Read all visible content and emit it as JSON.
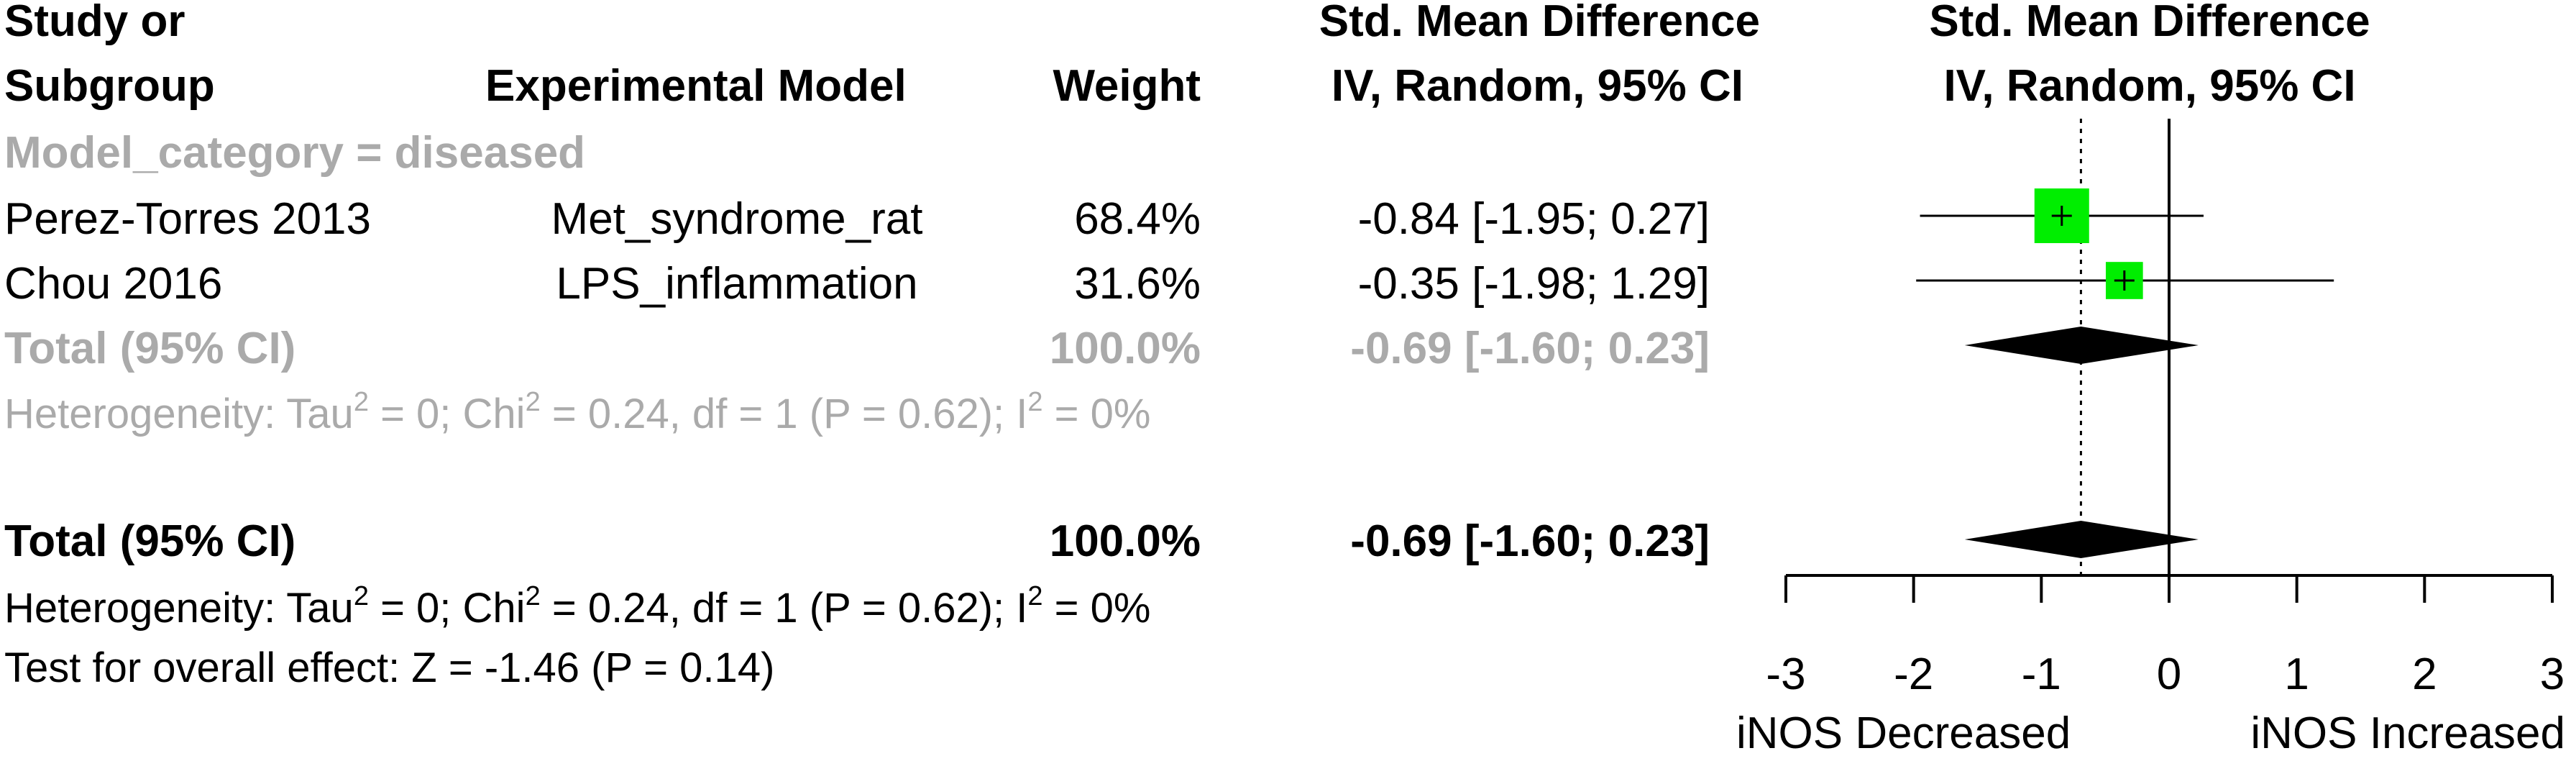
{
  "headers": {
    "study": [
      "Study or",
      "Subgroup"
    ],
    "model": "Experimental Model",
    "weight": "Weight",
    "effect": [
      "Std. Mean Difference",
      "IV, Random, 95% CI"
    ],
    "plot": [
      "Std. Mean Difference",
      "IV, Random, 95% CI"
    ]
  },
  "subgroup": {
    "label": "Model_category = diseased",
    "total": {
      "label": "Total (95% CI)",
      "weight": "100.0%",
      "ci": "-0.69 [-1.60; 0.23]"
    },
    "heterogeneity": {
      "prefix": "Heterogeneity: Tau",
      "sup1": "2",
      "mid1": " = 0; Chi",
      "sup2": "2",
      "mid2": " = 0.24, df = 1 (P = 0.62); I",
      "sup3": "2",
      "suffix": " = 0%"
    }
  },
  "overall": {
    "total": {
      "label": "Total (95% CI)",
      "weight": "100.0%",
      "ci": "-0.69 [-1.60; 0.23]"
    },
    "heterogeneity": {
      "prefix": "Heterogeneity: Tau",
      "sup1": "2",
      "mid1": " = 0; Chi",
      "sup2": "2",
      "mid2": " = 0.24, df = 1 (P = 0.62); I",
      "sup3": "2",
      "suffix": " = 0%"
    },
    "test": "Test for overall effect: Z = -1.46 (P = 0.14)"
  },
  "colors": {
    "box": "#00ee00",
    "grey": "#aaaaaa",
    "black": "#000000"
  },
  "chart_data": {
    "type": "forest",
    "xlim": [
      -3,
      3
    ],
    "xticks": [
      -3,
      -2,
      -1,
      0,
      1,
      2,
      3
    ],
    "xlabels": [
      "iNOS Decreased",
      "iNOS Increased"
    ],
    "reference_line": 0,
    "pooled_line": -0.69,
    "studies": [
      {
        "name": "Perez-Torres 2013",
        "model": "Met_syndrome_rat",
        "weight": 68.4,
        "weight_label": "68.4%",
        "smd": -0.84,
        "lower": -1.95,
        "upper": 0.27,
        "ci_label": "-0.84 [-1.95; 0.27]"
      },
      {
        "name": "Chou 2016",
        "model": "LPS_inflammation",
        "weight": 31.6,
        "weight_label": "31.6%",
        "smd": -0.35,
        "lower": -1.98,
        "upper": 1.29,
        "ci_label": "-0.35 [-1.98; 1.29]"
      }
    ],
    "pooled": [
      {
        "name": "subgroup",
        "estimate": -0.69,
        "lower": -1.6,
        "upper": 0.23
      },
      {
        "name": "overall",
        "estimate": -0.69,
        "lower": -1.6,
        "upper": 0.23
      }
    ]
  }
}
